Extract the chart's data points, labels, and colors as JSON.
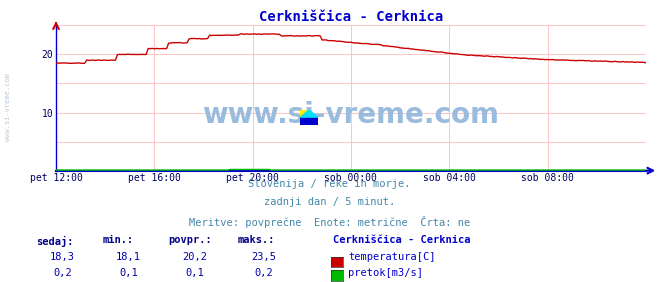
{
  "title": "Cerkniščica - Cerknica",
  "title_color": "#0000cc",
  "bg_color": "#ffffff",
  "plot_bg_color": "#ffffff",
  "grid_color": "#ffbbbb",
  "axis_color": "#0000cc",
  "watermark": "www.si-vreme.com",
  "watermark_color": "#99bbdd",
  "info_lines": [
    "Slovenija / reke in morje.",
    "zadnji dan / 5 minut.",
    "Meritve: povprečne  Enote: metrične  Črta: ne"
  ],
  "info_color": "#4488aa",
  "xlabel_color": "#000066",
  "ylabel_left_color": "#000066",
  "xlim": [
    0,
    288
  ],
  "ylim": [
    0,
    25
  ],
  "ytick_positions": [
    10,
    20
  ],
  "ytick_labels": [
    "10",
    "20"
  ],
  "xtick_positions": [
    0,
    48,
    96,
    144,
    192,
    240
  ],
  "xtick_labels": [
    "pet 12:00",
    "pet 16:00",
    "pet 20:00",
    "sob 00:00",
    "sob 04:00",
    "sob 08:00"
  ],
  "temp_color": "#cc0000",
  "flow_color": "#00bb00",
  "legend_title": "Cerkniščica - Cerknica",
  "legend_items": [
    "temperatura[C]",
    "pretok[m3/s]"
  ],
  "legend_colors": [
    "#cc0000",
    "#00bb00"
  ],
  "table_headers": [
    "sedaj:",
    "min.:",
    "povpr.:",
    "maks.:"
  ],
  "table_temp": [
    "18,3",
    "18,1",
    "20,2",
    "23,5"
  ],
  "table_flow": [
    "0,2",
    "0,1",
    "0,1",
    "0,2"
  ],
  "table_color": "#0000aa",
  "table_header_color": "#000088",
  "side_watermark": "www.si-vreme.com",
  "side_watermark_color": "#aabbcc"
}
